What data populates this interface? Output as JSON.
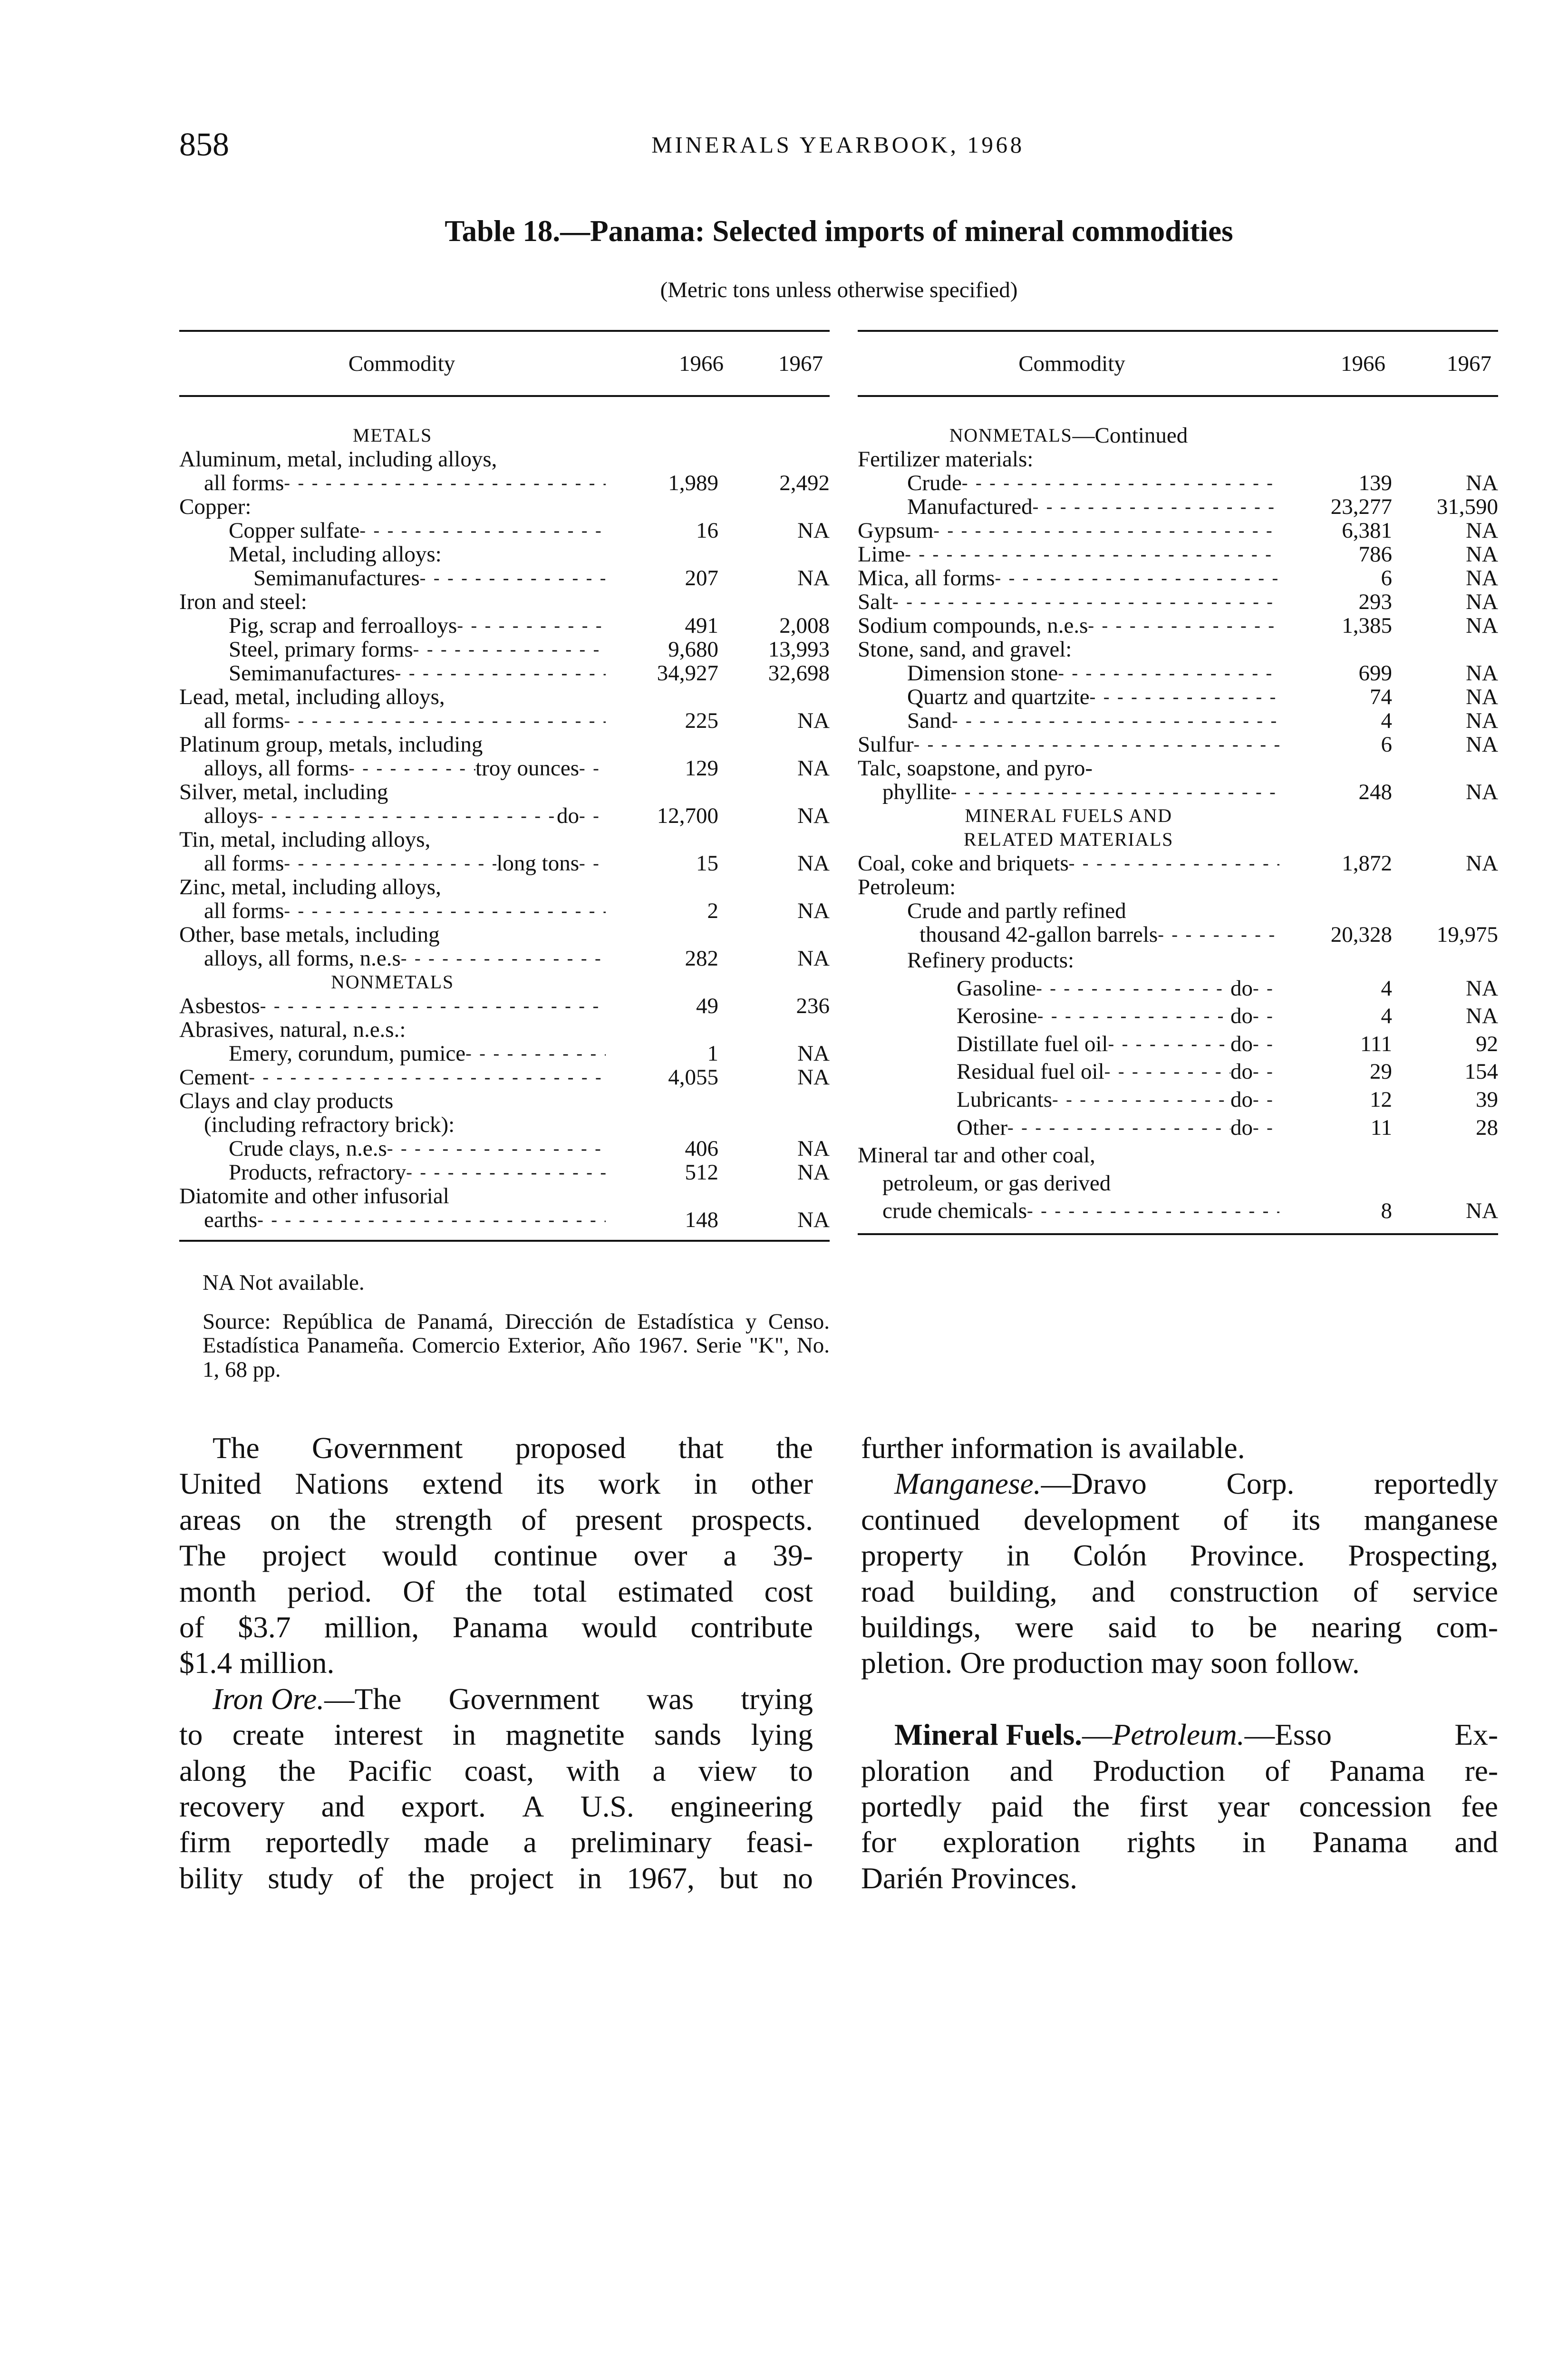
{
  "page": {
    "number": "858",
    "running_head": "MINERALS YEARBOOK, 1968"
  },
  "table": {
    "title": "Table 18.—Panama: Selected imports of mineral commodities",
    "subtitle": "(Metric tons unless otherwise specified)",
    "columns": [
      "Commodity",
      "1966",
      "1967"
    ],
    "left_rows": [
      {
        "type": "heading",
        "label": "METALS"
      },
      {
        "label": "Aluminum, metal, including alloys,",
        "indent": 0
      },
      {
        "label": "all forms",
        "indent": 1,
        "v1966": "1,989",
        "v1967": "2,492"
      },
      {
        "label": "Copper:",
        "indent": 0
      },
      {
        "label": "Copper sulfate",
        "indent": 2,
        "v1966": "16",
        "v1967": "NA"
      },
      {
        "label": "Metal, including alloys:",
        "indent": 2
      },
      {
        "label": "Semimanufactures",
        "indent": 3,
        "v1966": "207",
        "v1967": "NA"
      },
      {
        "label": "Iron and steel:",
        "indent": 0
      },
      {
        "label": "Pig, scrap and ferroalloys",
        "indent": 2,
        "v1966": "491",
        "v1967": "2,008"
      },
      {
        "label": "Steel, primary forms",
        "indent": 2,
        "v1966": "9,680",
        "v1967": "13,993"
      },
      {
        "label": "Semimanufactures",
        "indent": 2,
        "v1966": "34,927",
        "v1967": "32,698"
      },
      {
        "label": "Lead, metal, including alloys,",
        "indent": 0
      },
      {
        "label": "all forms",
        "indent": 1,
        "v1966": "225",
        "v1967": "NA"
      },
      {
        "label": "Platinum group, metals, including",
        "indent": 0
      },
      {
        "label": "alloys, all forms",
        "unit": "troy ounces",
        "indent": 1,
        "v1966": "129",
        "v1967": "NA"
      },
      {
        "label": "Silver, metal, including",
        "indent": 0
      },
      {
        "label": "alloys",
        "unit": "do",
        "indent": 1,
        "v1966": "12,700",
        "v1967": "NA"
      },
      {
        "label": "Tin, metal, including alloys,",
        "indent": 0
      },
      {
        "label": "all forms",
        "unit": "long tons",
        "indent": 1,
        "v1966": "15",
        "v1967": "NA"
      },
      {
        "label": "Zinc, metal, including alloys,",
        "indent": 0
      },
      {
        "label": "all forms",
        "indent": 1,
        "v1966": "2",
        "v1967": "NA"
      },
      {
        "label": "Other, base metals, including",
        "indent": 0
      },
      {
        "label": "alloys, all forms, n.e.s",
        "indent": 1,
        "v1966": "282",
        "v1967": "NA"
      },
      {
        "type": "heading",
        "label": "NONMETALS"
      },
      {
        "label": "Asbestos",
        "indent": 0,
        "v1966": "49",
        "v1967": "236"
      },
      {
        "label": "Abrasives, natural, n.e.s.:",
        "indent": 0
      },
      {
        "label": "Emery, corundum, pumice",
        "indent": 2,
        "v1966": "1",
        "v1967": "NA"
      },
      {
        "label": "Cement",
        "indent": 0,
        "v1966": "4,055",
        "v1967": "NA"
      },
      {
        "label": "Clays and clay products",
        "indent": 0
      },
      {
        "label": "(including refractory brick):",
        "indent": 1
      },
      {
        "label": "Crude clays, n.e.s",
        "indent": 2,
        "v1966": "406",
        "v1967": "NA"
      },
      {
        "label": "Products, refractory",
        "indent": 2,
        "v1966": "512",
        "v1967": "NA"
      },
      {
        "label": "Diatomite and other infusorial",
        "indent": 0
      },
      {
        "label": "earths",
        "indent": 1,
        "v1966": "148",
        "v1967": "NA"
      }
    ],
    "right_rows": [
      {
        "type": "heading",
        "label": "NONMETALS",
        "suffix": "—Continued"
      },
      {
        "label": "Fertilizer materials:",
        "indent": 0
      },
      {
        "label": "Crude",
        "indent": 2,
        "v1966": "139",
        "v1967": "NA"
      },
      {
        "label": "Manufactured",
        "indent": 2,
        "v1966": "23,277",
        "v1967": "31,590"
      },
      {
        "label": "Gypsum",
        "indent": 0,
        "v1966": "6,381",
        "v1967": "NA"
      },
      {
        "label": "Lime",
        "indent": 0,
        "v1966": "786",
        "v1967": "NA"
      },
      {
        "label": "Mica, all forms",
        "indent": 0,
        "v1966": "6",
        "v1967": "NA"
      },
      {
        "label": "Salt",
        "indent": 0,
        "v1966": "293",
        "v1967": "NA"
      },
      {
        "label": "Sodium compounds, n.e.s",
        "indent": 0,
        "v1966": "1,385",
        "v1967": "NA"
      },
      {
        "label": "Stone, sand, and gravel:",
        "indent": 0
      },
      {
        "label": "Dimension stone",
        "indent": 2,
        "v1966": "699",
        "v1967": "NA"
      },
      {
        "label": "Quartz and quartzite",
        "indent": 2,
        "v1966": "74",
        "v1967": "NA"
      },
      {
        "label": "Sand",
        "indent": 2,
        "v1966": "4",
        "v1967": "NA"
      },
      {
        "label": "Sulfur",
        "indent": 0,
        "v1966": "6",
        "v1967": "NA"
      },
      {
        "label": "Talc, soapstone, and pyro-",
        "indent": 0
      },
      {
        "label": "phyllite",
        "indent": 1,
        "v1966": "248",
        "v1967": "NA"
      },
      {
        "type": "heading",
        "label": "MINERAL FUELS AND"
      },
      {
        "type": "heading",
        "label": "RELATED MATERIALS"
      },
      {
        "label": "Coal, coke and briquets",
        "indent": 0,
        "v1966": "1,872",
        "v1967": "NA"
      },
      {
        "label": "Petroleum:",
        "indent": 0
      },
      {
        "label": "Crude and partly refined",
        "indent": 2
      },
      {
        "label": "thousand 42-gallon barrels",
        "indent": 2.5,
        "v1966": "20,328",
        "v1967": "19,975"
      },
      {
        "label": "Refinery products:",
        "indent": 2
      },
      {
        "label": "Gasoline",
        "unit": "do",
        "indent": 4,
        "v1966": "4",
        "v1967": "NA"
      },
      {
        "label": "Kerosine",
        "unit": "do",
        "indent": 4,
        "v1966": "4",
        "v1967": "NA"
      },
      {
        "label": "Distillate fuel oil",
        "unit": "do",
        "indent": 4,
        "v1966": "111",
        "v1967": "92"
      },
      {
        "label": "Residual fuel oil",
        "unit": "do",
        "indent": 4,
        "v1966": "29",
        "v1967": "154"
      },
      {
        "label": "Lubricants",
        "unit": "do",
        "indent": 4,
        "v1966": "12",
        "v1967": "39"
      },
      {
        "label": "Other",
        "unit": "do",
        "indent": 4,
        "v1966": "11",
        "v1967": "28"
      },
      {
        "label": "Mineral tar and other coal,",
        "indent": 0
      },
      {
        "label": "petroleum, or gas derived",
        "indent": 1
      },
      {
        "label": "crude chemicals",
        "indent": 1,
        "v1966": "8",
        "v1967": "NA"
      }
    ],
    "footnote": "NA Not available.",
    "source": "Source: República de Panamá, Dirección de Estadística y Censo. Estadística Panameña. Comercio Exterior, Año 1967. Serie \"K\", No. 1, 68 pp."
  },
  "text": {
    "left": [
      {
        "lines": [
          "The Government proposed that the",
          "United Nations extend its work in other",
          "areas on the strength of present prospects.",
          "The project would continue over a 39-",
          "month period. Of the total estimated cost",
          "of $3.7 million, Panama would contribute",
          "$1.4 million."
        ]
      },
      {
        "lead_italic": "Iron Ore.",
        "lines": [
          "—The Government was trying",
          "to create interest in magnetite sands lying",
          "along the Pacific coast, with a view to",
          "recovery and export. A U.S. engineering",
          "firm reportedly made a preliminary feasi-",
          "bility study of the project in 1967, but no"
        ],
        "continues": true
      }
    ],
    "right": [
      {
        "continued": true,
        "lines": [
          "further information is available."
        ]
      },
      {
        "lead_italic": "Manganese.",
        "lines": [
          "—Dravo Corp. reportedly",
          "continued development of its manganese",
          "property in Colón Province. Prospecting,",
          "road building, and construction of service",
          "buildings, were said to be nearing com-",
          "pletion. Ore production may soon follow."
        ]
      },
      {
        "gap_before": true,
        "lead_bold": "Mineral Fuels.",
        "lead_sep": "—",
        "lead_italic": "Petroleum.",
        "lines": [
          "—Esso Ex-",
          "ploration and Production of Panama re-",
          "portedly paid the first year concession fee",
          "for exploration rights in Panama and",
          "Darién Provinces."
        ]
      }
    ]
  }
}
